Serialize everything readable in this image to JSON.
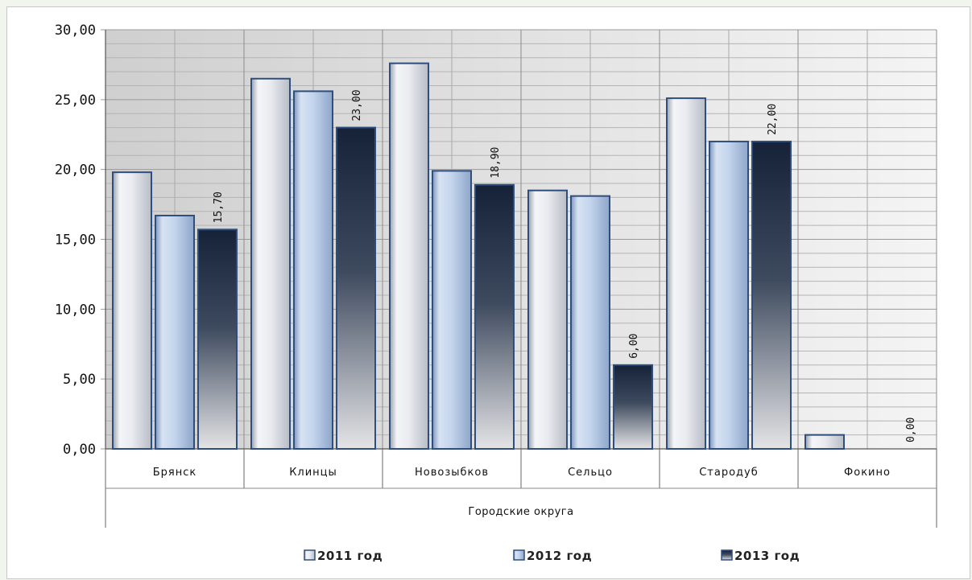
{
  "chart_data": {
    "type": "bar",
    "categories": [
      "Брянск",
      "Клинцы",
      "Новозыбков",
      "Сельцо",
      "Стародуб",
      "Фокино"
    ],
    "group_label": "Городские округа",
    "series": [
      {
        "name": "2011 год",
        "values": [
          19.8,
          26.5,
          27.6,
          18.5,
          25.1,
          1.0
        ],
        "color": "#e4e6ec"
      },
      {
        "name": "2012 год",
        "values": [
          16.7,
          25.6,
          19.9,
          18.1,
          22.0,
          null
        ],
        "color": "#b9cce6"
      },
      {
        "name": "2013 год",
        "values": [
          15.7,
          23.0,
          18.9,
          6.0,
          22.0,
          0.0
        ],
        "color": "#1d2b44"
      }
    ],
    "data_labels_series": "2013 год",
    "data_labels": [
      "15,70",
      "23,00",
      "18,90",
      "6,00",
      "22,00",
      "0,00"
    ],
    "y_ticks": [
      "0,00",
      "5,00",
      "10,00",
      "15,00",
      "20,00",
      "25,00",
      "30,00"
    ],
    "ylim": [
      0,
      30
    ],
    "grid": true,
    "legend_position": "bottom",
    "colors": {
      "plot_bg": "#d8d8d8",
      "grid": "#9a9a9a",
      "bar_outline": "#2e4e7e"
    }
  }
}
